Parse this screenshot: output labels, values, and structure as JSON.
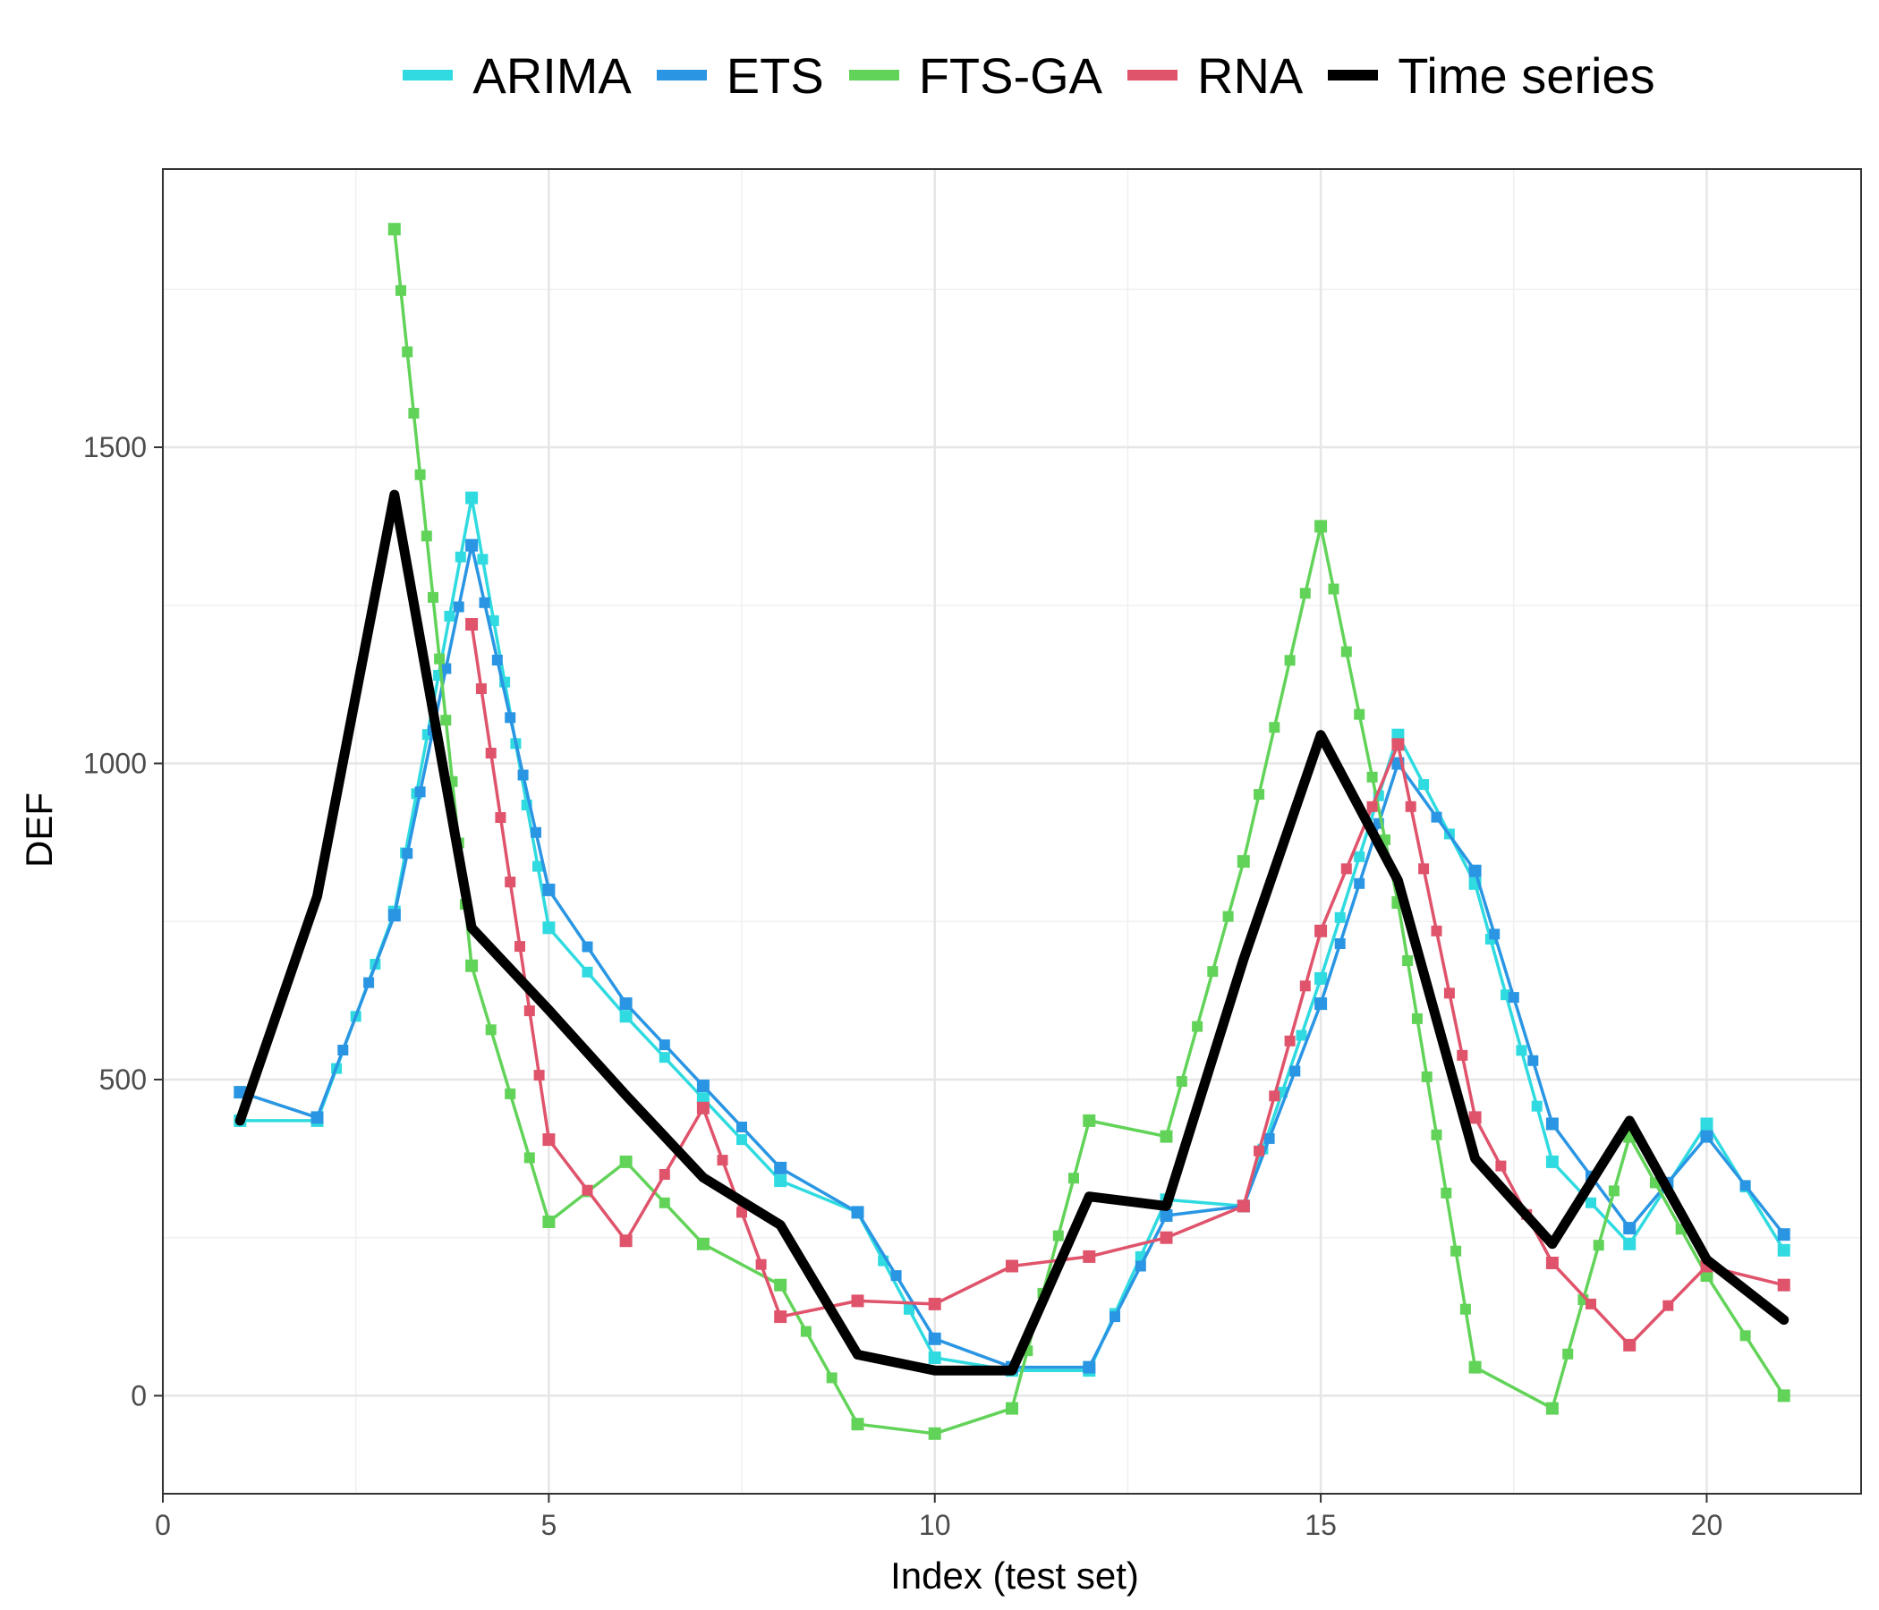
{
  "chart_data": {
    "type": "line",
    "xlabel": "Index (test set)",
    "ylabel": "DEF",
    "xlim": [
      0,
      22
    ],
    "ylim": [
      -155,
      1940
    ],
    "xticks": [
      0,
      5,
      10,
      15,
      20
    ],
    "yticks": [
      0,
      500,
      1000,
      1500
    ],
    "grid": true,
    "legend_position": "top",
    "x": [
      1,
      2,
      3,
      4,
      5,
      6,
      7,
      8,
      9,
      10,
      11,
      12,
      13,
      14,
      15,
      16,
      17,
      18,
      19,
      20,
      21
    ],
    "series": [
      {
        "name": "ARIMA",
        "color": "#2fdbe0",
        "values": [
          435,
          435,
          765,
          1420,
          740,
          600,
          470,
          340,
          290,
          60,
          40,
          40,
          310,
          300,
          660,
          1045,
          810,
          370,
          240,
          430,
          230
        ]
      },
      {
        "name": "ETS",
        "color": "#2a96e3",
        "values": [
          480,
          440,
          760,
          1345,
          800,
          620,
          490,
          360,
          290,
          90,
          45,
          45,
          285,
          300,
          620,
          1000,
          830,
          430,
          265,
          410,
          255
        ]
      },
      {
        "name": "FTS-GA",
        "color": "#62d359",
        "values": [
          null,
          null,
          1845,
          680,
          275,
          370,
          240,
          175,
          -45,
          -60,
          -20,
          435,
          410,
          845,
          1375,
          780,
          45,
          -20,
          410,
          190,
          0
        ]
      },
      {
        "name": "RNA",
        "color": "#df536b",
        "values": [
          null,
          null,
          null,
          1220,
          405,
          245,
          455,
          125,
          150,
          145,
          205,
          220,
          250,
          300,
          735,
          1030,
          440,
          210,
          80,
          205,
          175
        ]
      },
      {
        "name": "Time series",
        "color": "#000000",
        "values": [
          435,
          790,
          1425,
          740,
          610,
          475,
          345,
          270,
          65,
          40,
          40,
          315,
          300,
          690,
          1045,
          815,
          375,
          240,
          435,
          215,
          120
        ]
      }
    ]
  }
}
